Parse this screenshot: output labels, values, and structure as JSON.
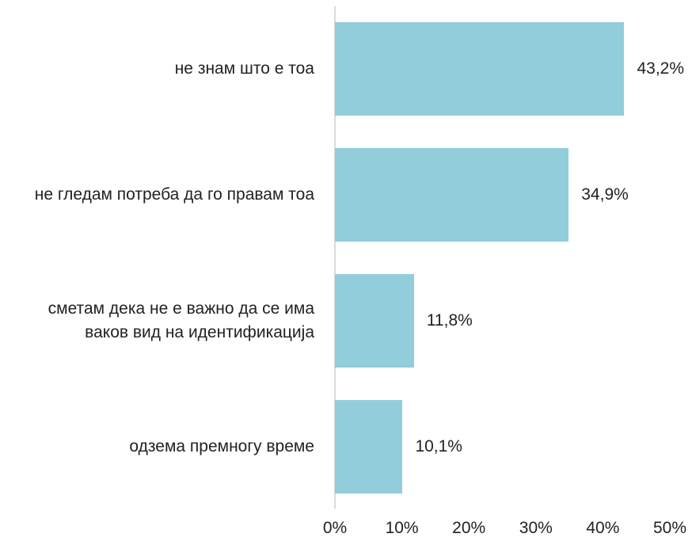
{
  "chart_data": {
    "type": "bar",
    "orientation": "horizontal",
    "categories": [
      "не знам што е тоа",
      "не гледам потреба да го правам тоа",
      "сметам дека не е важно да се има ваков вид на идентификација",
      "одзема премногу време"
    ],
    "values": [
      43.2,
      34.9,
      11.8,
      10.1
    ],
    "value_labels": [
      "43,2%",
      "34,9%",
      "11,8%",
      "10,1%"
    ],
    "color": "#92cddc",
    "xlim": [
      0,
      50
    ],
    "xticks": [
      {
        "value": 0,
        "label": "0%"
      },
      {
        "value": 10,
        "label": "10%"
      },
      {
        "value": 20,
        "label": "20%"
      },
      {
        "value": 30,
        "label": "30%"
      },
      {
        "value": 40,
        "label": "40%"
      },
      {
        "value": 50,
        "label": "50%"
      }
    ]
  }
}
